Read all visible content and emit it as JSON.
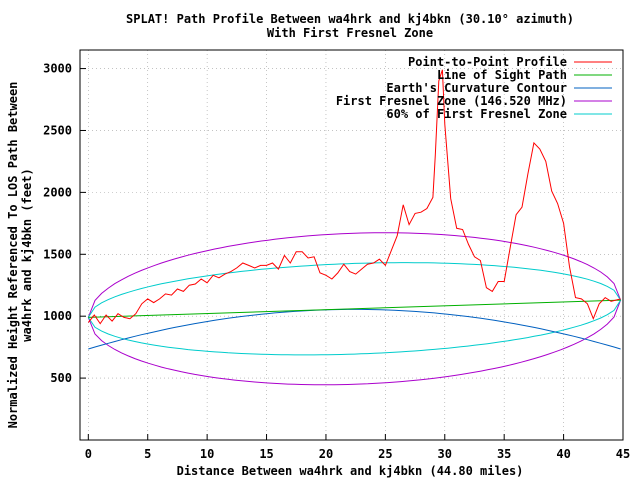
{
  "chart_data": {
    "type": "line",
    "title": "SPLAT! Path Profile Between wa4hrk and kj4bkn (30.10° azimuth)",
    "subtitle": "With First Fresnel Zone",
    "xlabel": "Distance Between wa4hrk and kj4bkn (44.80 miles)",
    "ylabel_line1": "Normalized Height Referenced To LOS Path Between",
    "ylabel_line2": "wa4hrk and kj4bkn (feet)",
    "xlim": [
      -0.7,
      45
    ],
    "ylim": [
      0,
      3150
    ],
    "xticks": [
      0,
      5,
      10,
      15,
      20,
      25,
      30,
      35,
      40,
      45
    ],
    "yticks": [
      500,
      1000,
      1500,
      2000,
      2500,
      3000
    ],
    "grid": true,
    "legend_position": "top-right",
    "series": [
      {
        "name": "Point-to-Point Profile",
        "color": "#ff0000",
        "x": [
          0,
          0.5,
          1,
          1.5,
          2,
          2.5,
          3,
          3.5,
          4,
          4.5,
          5,
          5.5,
          6,
          6.5,
          7,
          7.5,
          8,
          8.5,
          9,
          9.5,
          10,
          10.5,
          11,
          11.5,
          12,
          12.5,
          13,
          13.5,
          14,
          14.5,
          15,
          15.5,
          16,
          16.5,
          17,
          17.5,
          18,
          18.5,
          19,
          19.5,
          20,
          20.5,
          21,
          21.5,
          22,
          22.5,
          23,
          23.5,
          24,
          24.5,
          25,
          25.5,
          26,
          26.5,
          27,
          27.5,
          28,
          28.5,
          29,
          29.2,
          29.5,
          29.8,
          30,
          30.5,
          31,
          31.5,
          32,
          32.5,
          33,
          33.5,
          34,
          34.5,
          35,
          35.5,
          36,
          36.5,
          37,
          37.5,
          38,
          38.5,
          39,
          39.5,
          40,
          40.5,
          41,
          41.5,
          42,
          42.5,
          43,
          43.5,
          44,
          44.8
        ],
        "values": [
          950,
          1010,
          940,
          1010,
          960,
          1020,
          990,
          980,
          1020,
          1100,
          1140,
          1110,
          1140,
          1180,
          1170,
          1220,
          1200,
          1250,
          1260,
          1300,
          1270,
          1330,
          1310,
          1340,
          1360,
          1390,
          1430,
          1410,
          1390,
          1410,
          1410,
          1430,
          1380,
          1490,
          1430,
          1520,
          1520,
          1470,
          1480,
          1350,
          1330,
          1300,
          1350,
          1420,
          1360,
          1340,
          1380,
          1420,
          1430,
          1460,
          1410,
          1530,
          1650,
          1900,
          1740,
          1830,
          1840,
          1870,
          1960,
          2300,
          2900,
          2990,
          2550,
          1950,
          1710,
          1700,
          1580,
          1480,
          1450,
          1230,
          1200,
          1280,
          1280,
          1550,
          1820,
          1880,
          2150,
          2400,
          2350,
          2250,
          2010,
          1910,
          1750,
          1400,
          1150,
          1140,
          1100,
          980,
          1100,
          1150,
          1120,
          1140
        ]
      },
      {
        "name": "Line of Sight Path",
        "color": "#00b000",
        "x": [
          0,
          44.8
        ],
        "values": [
          990,
          1130
        ]
      },
      {
        "name": "Earth's Curvature Contour",
        "color": "#0060c0",
        "x": [
          0,
          44.8
        ],
        "values": [
          735,
          735
        ],
        "peak": 1055
      },
      {
        "name": "First Fresnel Zone (146.520 MHz)",
        "color": "#aa00cc",
        "x": [
          0,
          44.8
        ],
        "values": [
          990,
          1130
        ],
        "max_radius": 610
      },
      {
        "name": "60% of First Fresnel Zone",
        "color": "#00cccc",
        "x": [
          0,
          44.8
        ],
        "values": [
          990,
          1130
        ],
        "max_radius": 366
      }
    ]
  }
}
